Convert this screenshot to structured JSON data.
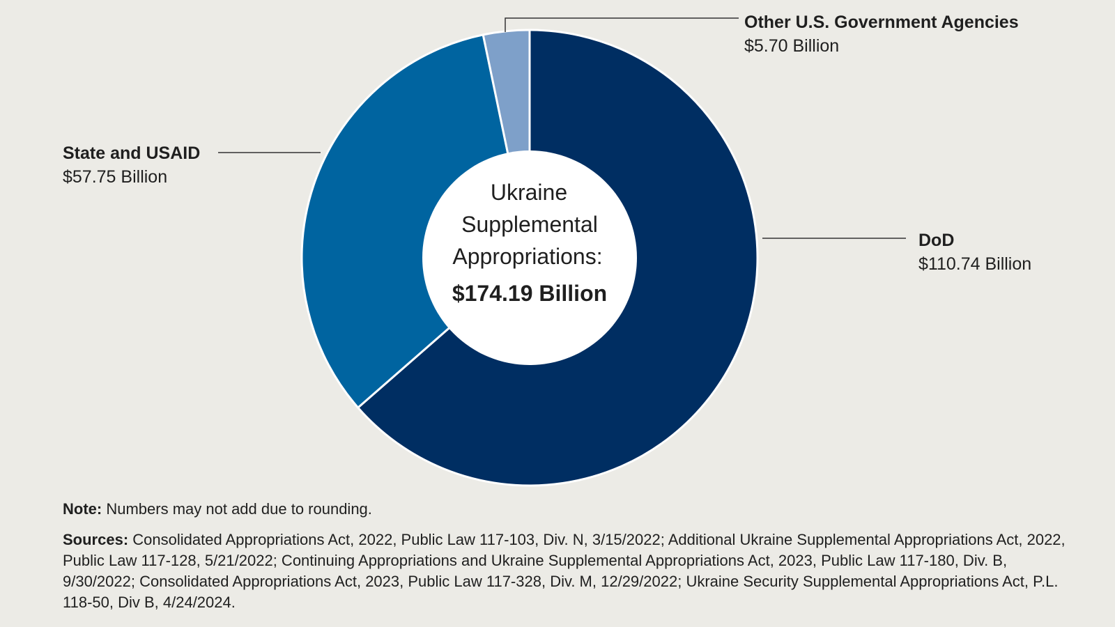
{
  "chart_data": {
    "type": "pie",
    "donut": true,
    "center_label": {
      "lines": [
        "Ukraine",
        "Supplemental",
        "Appropriations:"
      ],
      "total": "$174.19 Billion"
    },
    "slices": [
      {
        "name": "DoD",
        "value": 110.74,
        "value_label": "$110.74 Billion",
        "color": "#002e62"
      },
      {
        "name": "State and USAID",
        "value": 57.75,
        "value_label": "$57.75 Billion",
        "color": "#0064a0"
      },
      {
        "name": "Other U.S. Government Agencies",
        "value": 5.7,
        "value_label": "$5.70 Billion",
        "color": "#7ea0c9"
      }
    ],
    "legend": "none"
  },
  "note": {
    "label": "Note:",
    "text": "Numbers may not add due to rounding."
  },
  "sources": {
    "label": "Sources:",
    "text": "Consolidated Appropriations Act, 2022, Public Law 117-103, Div. N, 3/15/2022; Additional Ukraine Supplemental Appropriations Act, 2022, Public Law 117-128, 5/21/2022; Continuing Appropriations and Ukraine Supplemental Appropriations Act, 2023, Public Law 117-180, Div. B, 9/30/2022; Consolidated Appropriations Act, 2023, Public Law 117-328, Div. M, 12/29/2022; Ukraine Security Supplemental Appropriations Act, P.L. 118-50, Div B, 4/24/2024."
  }
}
